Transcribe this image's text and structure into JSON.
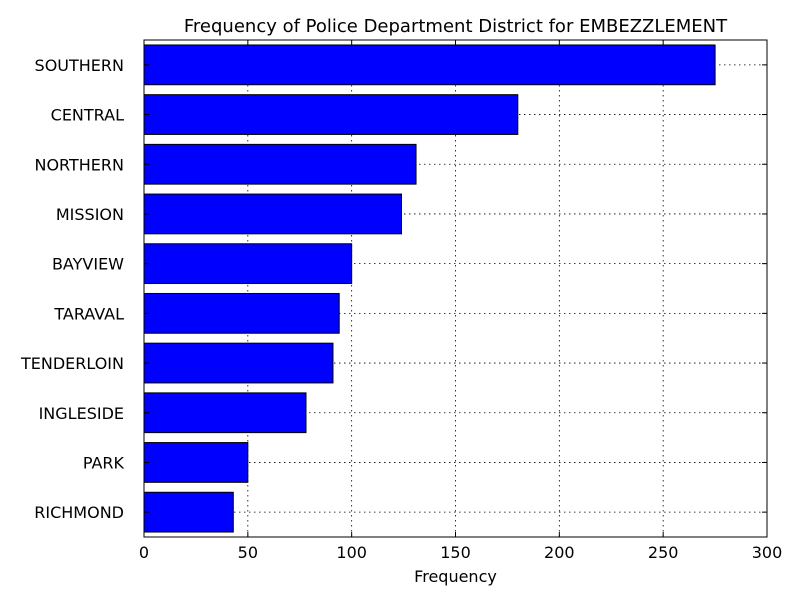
{
  "chart_data": {
    "type": "bar",
    "orientation": "horizontal",
    "title": "Frequency of Police Department District for EMBEZZLEMENT",
    "xlabel": "Frequency",
    "ylabel": "",
    "categories": [
      "SOUTHERN",
      "CENTRAL",
      "NORTHERN",
      "MISSION",
      "BAYVIEW",
      "TARAVAL",
      "TENDERLOIN",
      "INGLESIDE",
      "PARK",
      "RICHMOND"
    ],
    "values": [
      275,
      180,
      131,
      124,
      100,
      94,
      91,
      78,
      50,
      43
    ],
    "xlim": [
      0,
      300
    ],
    "xticks": [
      0,
      50,
      100,
      150,
      200,
      250,
      300
    ],
    "grid": true,
    "bar_color": "#0000ff",
    "edge_color": "#000000"
  }
}
